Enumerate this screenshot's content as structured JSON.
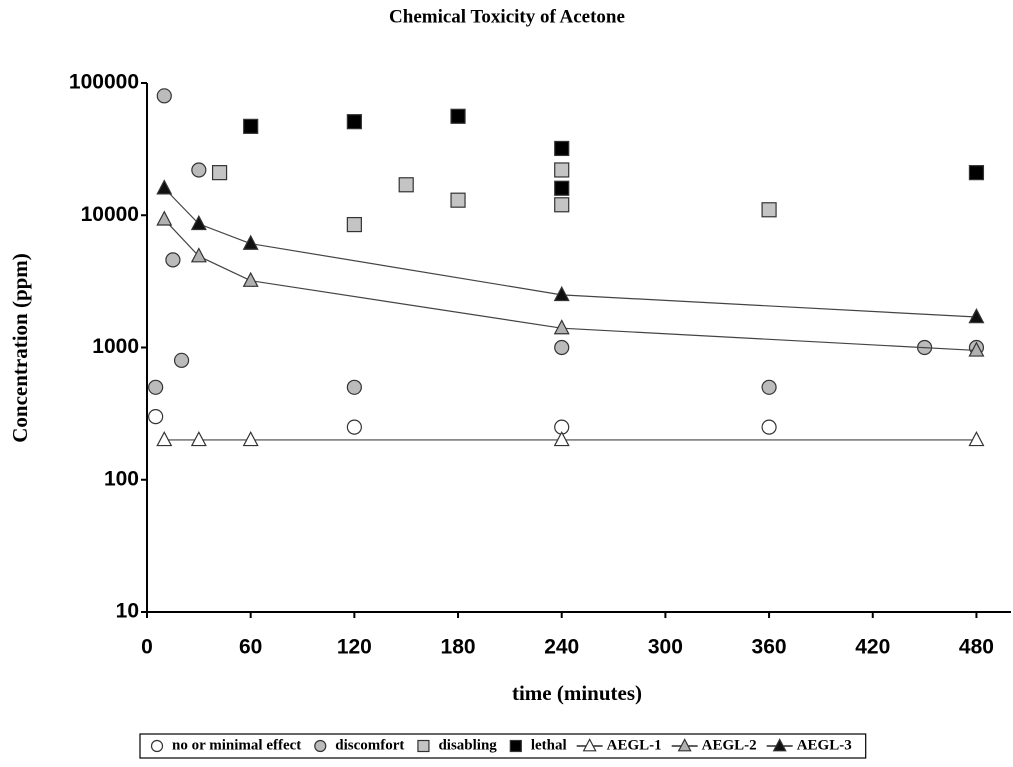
{
  "chart_data": {
    "type": "scatter",
    "title": "Chemical Toxicity of Acetone",
    "x_label": "time (minutes)",
    "y_label": "Concentration (ppm)",
    "log_y": true,
    "xlim": [
      0,
      500
    ],
    "ylim": [
      10,
      100000
    ],
    "xticks": [
      0,
      60,
      120,
      180,
      240,
      300,
      360,
      420,
      480
    ],
    "yticks": [
      10,
      100,
      1000,
      10000,
      100000
    ],
    "series": [
      {
        "name": "no or minimal effect",
        "marker": "circle",
        "color": "#ffffff",
        "line": false,
        "x": [
          5,
          120,
          240,
          360
        ],
        "values": [
          300,
          250,
          250,
          250
        ]
      },
      {
        "name": "discomfort",
        "marker": "circle",
        "color": "#bbbbbb",
        "line": false,
        "x": [
          5,
          10,
          15,
          20,
          30,
          120,
          240,
          360,
          450,
          480
        ],
        "values": [
          500,
          80000,
          4600,
          800,
          22000,
          500,
          1000,
          500,
          1000,
          1000
        ]
      },
      {
        "name": "disabling",
        "marker": "square",
        "color": "#c4c4c4",
        "line": false,
        "x": [
          42,
          120,
          150,
          180,
          240,
          240,
          360
        ],
        "values": [
          21000,
          8500,
          17000,
          13000,
          22000,
          12000,
          11000
        ]
      },
      {
        "name": "lethal",
        "marker": "square",
        "color": "#000000",
        "line": false,
        "x": [
          60,
          120,
          180,
          240,
          240,
          480
        ],
        "values": [
          47000,
          51000,
          56000,
          32000,
          16000,
          21000
        ]
      },
      {
        "name": "AEGL-1",
        "marker": "triangle",
        "color": "#ffffff",
        "line": true,
        "x": [
          10,
          30,
          60,
          240,
          480
        ],
        "values": [
          200,
          200,
          200,
          200,
          200
        ]
      },
      {
        "name": "AEGL-2",
        "marker": "triangle",
        "color": "#b0b0b0",
        "line": true,
        "x": [
          10,
          30,
          60,
          240,
          480
        ],
        "values": [
          9300,
          4900,
          3200,
          1400,
          950
        ]
      },
      {
        "name": "AEGL-3",
        "marker": "triangle",
        "color": "#111111",
        "line": true,
        "x": [
          10,
          30,
          60,
          240,
          480
        ],
        "values": [
          16000,
          8600,
          6100,
          2500,
          1700
        ]
      }
    ]
  }
}
